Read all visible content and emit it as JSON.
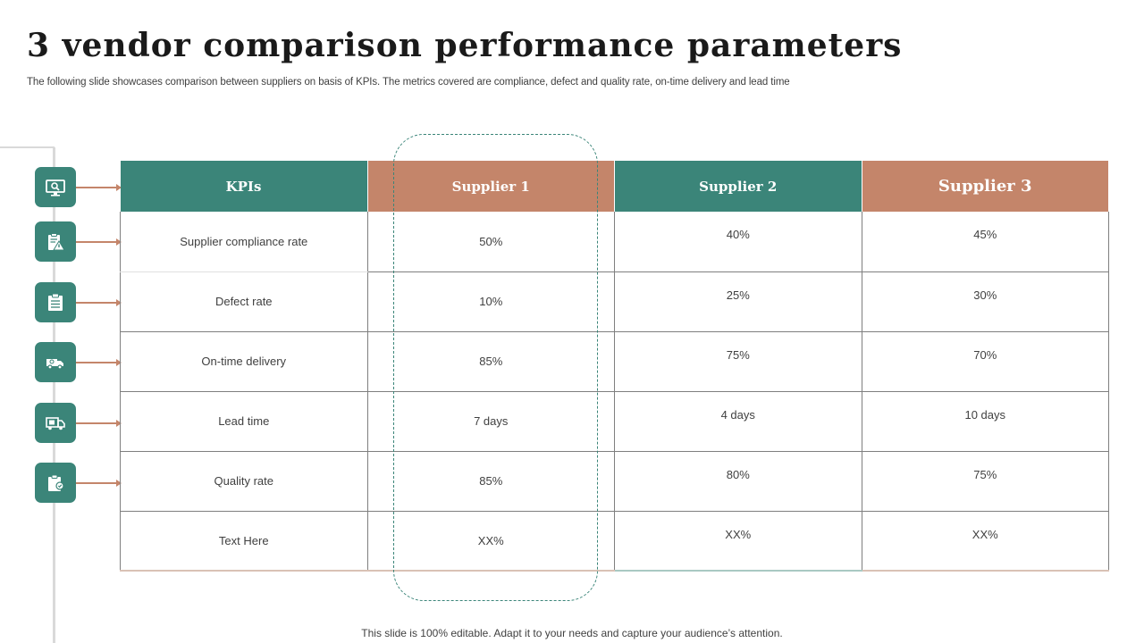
{
  "slide": {
    "title": "3 vendor comparison performance parameters",
    "subtitle": "The following slide showcases comparison between suppliers on basis of KPIs. The metrics covered are compliance, defect and quality rate, on-time delivery and lead time",
    "footer": "This slide is 100% editable. Adapt it to your needs and capture your audience’s attention."
  },
  "colors": {
    "teal": "#3b8579",
    "rust": "#c4856a"
  },
  "icons": [
    "monitor-search-icon",
    "clipboard-warning-icon",
    "checklist-icon",
    "delivery-van-icon",
    "delivery-truck-icon",
    "clipboard-quality-icon"
  ],
  "table": {
    "headers": [
      "KPIs",
      "Supplier 1",
      "Supplier 2",
      "Supplier 3"
    ],
    "rows": [
      {
        "kpi": "Supplier compliance rate",
        "s1": "50%",
        "s2": "40%",
        "s3": "45%"
      },
      {
        "kpi": "Defect rate",
        "s1": "10%",
        "s2": "25%",
        "s3": "30%"
      },
      {
        "kpi": "On-time delivery",
        "s1": "85%",
        "s2": "75%",
        "s3": "70%"
      },
      {
        "kpi": "Lead time",
        "s1": "7 days",
        "s2": "4 days",
        "s3": "10 days"
      },
      {
        "kpi": "Quality rate",
        "s1": "85%",
        "s2": "80%",
        "s3": "75%"
      },
      {
        "kpi": "Text Here",
        "s1": "XX%",
        "s2": "XX%",
        "s3": "XX%"
      }
    ]
  }
}
